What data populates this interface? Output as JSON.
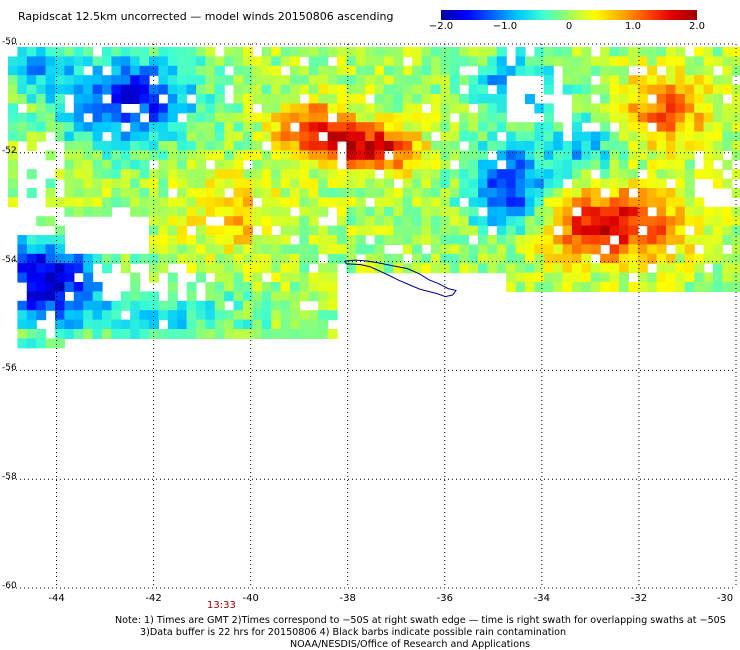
{
  "title": "Rapidscat 12.5km uncorrected — model winds 20150806 ascending",
  "colorbar": {
    "min": -2.0,
    "max": 2.0,
    "tick_labels": [
      "−2.0",
      "−1.0",
      "0",
      "1.0",
      "2.0"
    ],
    "tick_values": [
      -2.0,
      -1.0,
      0,
      1.0,
      2.0
    ],
    "colors": [
      "#0000a0",
      "#0000ff",
      "#0060ff",
      "#00c8ff",
      "#40ffd0",
      "#a0ff60",
      "#ffff00",
      "#ffb000",
      "#ff5000",
      "#e00000",
      "#a00000"
    ]
  },
  "map": {
    "lon_range": [
      -45,
      -30
    ],
    "lat_range": [
      -60,
      -50
    ],
    "lon_ticks": [
      "-44",
      "-42",
      "-40",
      "-38",
      "-36",
      "-34",
      "-32",
      "-30"
    ],
    "lat_ticks": [
      "-50",
      "-52",
      "-54",
      "-56",
      "-58",
      "-60"
    ],
    "coastline_color": "#000080",
    "grid": "dotted"
  },
  "time_label": "13:33",
  "notes": [
    "Note: 1) Times are GMT 2)Times correspond to −50S at right swath edge — time is right swath for overlapping swaths at −50S",
    "3)Data buffer is 22 hrs for 20150806 4) Black barbs indicate possible rain contamination",
    "NOAA/NESDIS/Office of Research and Applications"
  ]
}
